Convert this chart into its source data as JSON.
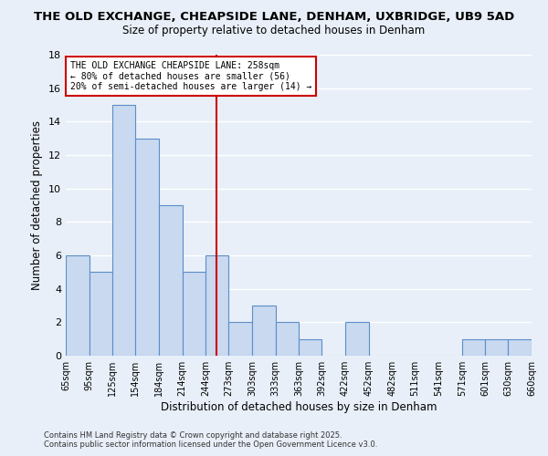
{
  "title": "THE OLD EXCHANGE, CHEAPSIDE LANE, DENHAM, UXBRIDGE, UB9 5AD",
  "subtitle": "Size of property relative to detached houses in Denham",
  "xlabel": "Distribution of detached houses by size in Denham",
  "ylabel": "Number of detached properties",
  "bar_color": "#c8d9f0",
  "bar_edge_color": "#5b8ec9",
  "background_color": "#e8eff8",
  "grid_color": "#ffffff",
  "bins": [
    65,
    95,
    125,
    154,
    184,
    214,
    244,
    273,
    303,
    333,
    363,
    392,
    422,
    452,
    482,
    511,
    541,
    571,
    601,
    630,
    660
  ],
  "counts": [
    6,
    5,
    15,
    13,
    9,
    5,
    6,
    2,
    3,
    2,
    1,
    0,
    2,
    0,
    0,
    0,
    0,
    1,
    1,
    1
  ],
  "tick_labels": [
    "65sqm",
    "95sqm",
    "125sqm",
    "154sqm",
    "184sqm",
    "214sqm",
    "244sqm",
    "273sqm",
    "303sqm",
    "333sqm",
    "363sqm",
    "392sqm",
    "422sqm",
    "452sqm",
    "482sqm",
    "511sqm",
    "541sqm",
    "571sqm",
    "601sqm",
    "630sqm",
    "660sqm"
  ],
  "vline_x": 258,
  "vline_color": "#cc0000",
  "annotation_line1": "THE OLD EXCHANGE CHEAPSIDE LANE: 258sqm",
  "annotation_line2": "← 80% of detached houses are smaller (56)",
  "annotation_line3": "20% of semi-detached houses are larger (14) →",
  "annotation_box_color": "#ffffff",
  "annotation_border_color": "#cc0000",
  "footer1": "Contains HM Land Registry data © Crown copyright and database right 2025.",
  "footer2": "Contains public sector information licensed under the Open Government Licence v3.0.",
  "ylim": [
    0,
    18
  ],
  "yticks": [
    0,
    2,
    4,
    6,
    8,
    10,
    12,
    14,
    16,
    18
  ]
}
